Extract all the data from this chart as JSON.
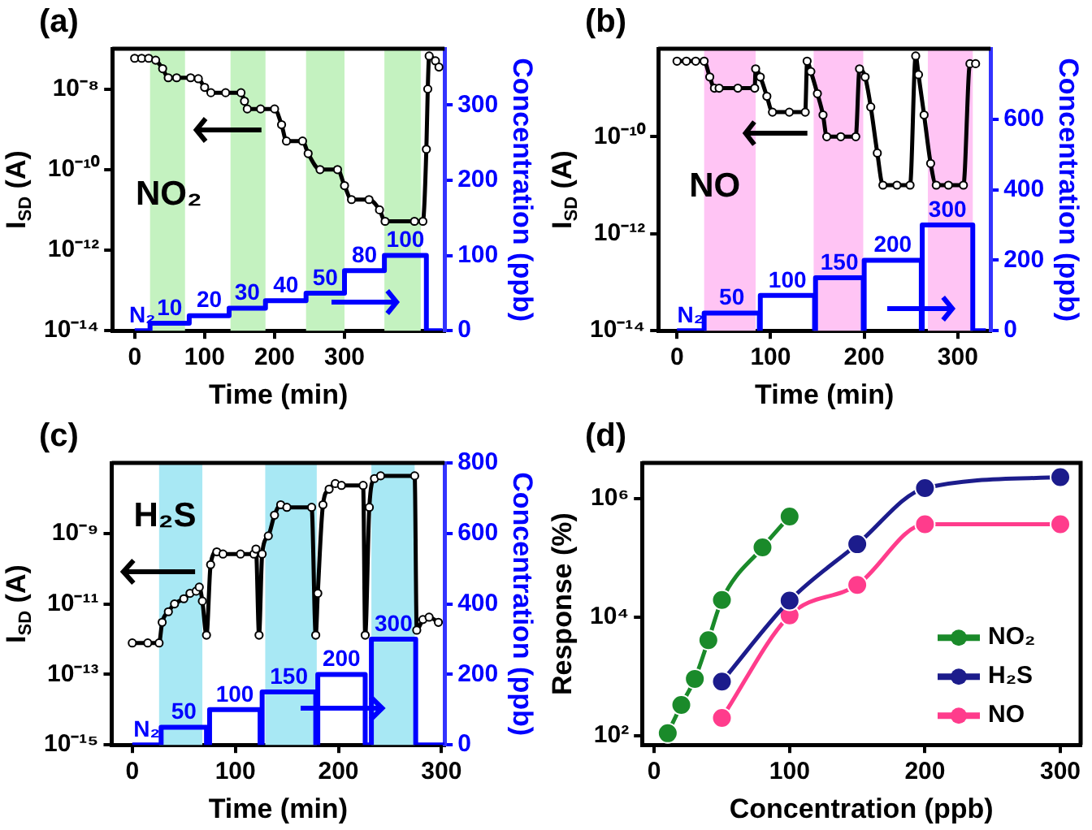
{
  "chart_data": [
    {
      "type": "line",
      "title": "(a)",
      "xlabel": "Time (min)",
      "ylabel": "I$_{SD}$ (A)",
      "y2label": "Concentration (ppb)",
      "log": "y",
      "legend": false,
      "xlim": [
        -32,
        443
      ],
      "xticks": [
        0,
        100,
        200,
        300
      ],
      "ylim": [
        1e-14,
        1e-07
      ],
      "yticks": [
        {
          "value": 1e-14,
          "label": "10⁻¹⁴"
        },
        {
          "value": 1e-12,
          "label": "10⁻¹²"
        },
        {
          "value": 1e-10,
          "label": "10⁻¹⁰"
        },
        {
          "value": 1e-08,
          "label": "10⁻⁸"
        }
      ],
      "y2lim": [
        0,
        375
      ],
      "y2ticks": [
        0,
        100,
        200,
        300
      ],
      "annotations": [
        "NO₂"
      ],
      "bands": [
        {
          "axis": "x",
          "from": 22,
          "to": 72,
          "color": "#c4f2c0"
        },
        {
          "axis": "x",
          "from": 137,
          "to": 187,
          "color": "#c4f2c0"
        },
        {
          "axis": "x",
          "from": 245,
          "to": 300,
          "color": "#c4f2c0"
        },
        {
          "axis": "x",
          "from": 357,
          "to": 409,
          "color": "#c4f2c0"
        }
      ],
      "series": [
        {
          "color": "#000000",
          "marker": "circle",
          "x": [
            0,
            10,
            20,
            30,
            40,
            48,
            60,
            80,
            91,
            100,
            109,
            130,
            152,
            157,
            161,
            180,
            200,
            210,
            217,
            240,
            248,
            265,
            290,
            300,
            310,
            335,
            350,
            358,
            400,
            412,
            417,
            419,
            421,
            430,
            435
          ],
          "values": [
            5.8e-08,
            5.8e-08,
            5.8e-08,
            5.2e-08,
            3.2e-08,
            1.9e-08,
            1.9e-08,
            1.9e-08,
            1.8e-08,
            1.1e-08,
            8.1e-09,
            8.1e-09,
            8.1e-09,
            5e-09,
            3.2e-09,
            3.2e-09,
            3.2e-09,
            1.3e-09,
            5.1e-10,
            5.1e-10,
            2.5e-10,
            1e-10,
            1e-10,
            4e-11,
            1.8e-11,
            1.8e-11,
            1e-11,
            5.2e-12,
            5.2e-12,
            5.2e-12,
            3.2e-10,
            1e-08,
            6.6e-08,
            5e-08,
            3.5e-08
          ]
        },
        {
          "type": "step",
          "axis": "y2",
          "color": "#0000ff",
          "marker": "none",
          "x": [
            0,
            22,
            78,
            135,
            187,
            245,
            300,
            357,
            417,
            440
          ],
          "values": [
            0,
            10,
            20,
            30,
            40,
            50,
            80,
            100,
            0,
            0
          ],
          "value_labels": [
            "N₂",
            "10",
            "20",
            "30",
            "40",
            "50",
            "80",
            "100",
            null,
            null
          ]
        }
      ]
    },
    {
      "type": "line",
      "title": "(b)",
      "xlabel": "Time (min)",
      "ylabel": "I$_{SD}$ (A)",
      "y2label": "Concentration (ppb)",
      "log": "y",
      "legend": false,
      "xlim": [
        -20,
        335
      ],
      "xticks": [
        0,
        100,
        200,
        300
      ],
      "ylim": [
        1e-14,
        6.5e-09
      ],
      "yticks": [
        {
          "value": 1e-14,
          "label": "10⁻¹⁴"
        },
        {
          "value": 1e-12,
          "label": "10⁻¹²"
        },
        {
          "value": 1e-10,
          "label": "10⁻¹⁰"
        }
      ],
      "y2lim": [
        0,
        800
      ],
      "y2ticks": [
        0,
        200,
        400,
        600
      ],
      "annotations": [
        "NO"
      ],
      "bands": [
        {
          "axis": "x",
          "from": 29,
          "to": 84,
          "color": "#ffc4f4"
        },
        {
          "axis": "x",
          "from": 146,
          "to": 199,
          "color": "#ffc4f4"
        },
        {
          "axis": "x",
          "from": 268,
          "to": 316,
          "color": "#ffc4f4"
        }
      ],
      "series": [
        {
          "color": "#000000",
          "marker": "circle",
          "x": [
            0,
            10,
            20,
            29,
            35,
            40,
            45,
            65,
            83,
            84,
            89,
            96,
            102,
            120,
            137,
            139,
            143,
            150,
            156,
            160,
            175,
            191,
            195,
            201,
            207,
            214,
            220,
            235,
            249,
            255,
            258,
            264,
            271,
            277,
            290,
            306,
            313,
            319
          ],
          "values": [
            3.6e-09,
            3.6e-09,
            3.6e-09,
            3.6e-09,
            1.7e-09,
            1e-09,
            1e-09,
            1e-09,
            1e-09,
            2.5e-09,
            1.7e-09,
            6.8e-10,
            3.2e-10,
            3.2e-10,
            3.2e-10,
            3.6e-09,
            2.2e-09,
            7.7e-10,
            2.8e-10,
            1e-10,
            1e-10,
            1e-10,
            2.5e-09,
            1.7e-09,
            4.1e-10,
            4.6e-11,
            1e-11,
            1e-11,
            1e-11,
            4.6e-09,
            1.9e-09,
            2.8e-10,
            2.8e-11,
            1e-11,
            1e-11,
            1e-11,
            3.2e-09,
            3.2e-09
          ]
        },
        {
          "type": "step",
          "axis": "y2",
          "color": "#0000ff",
          "marker": "none",
          "x": [
            0,
            29,
            88,
            89,
            147,
            148,
            199,
            200,
            261,
            262,
            316,
            330
          ],
          "values": [
            0,
            50,
            0,
            100,
            0,
            150,
            0,
            200,
            0,
            300,
            0,
            0
          ],
          "value_labels": [
            "N₂",
            "50",
            null,
            "100",
            null,
            "150",
            null,
            "200",
            null,
            "300",
            null,
            null
          ]
        }
      ]
    },
    {
      "type": "line",
      "title": "(c)",
      "xlabel": "Time (min)",
      "ylabel": "I$_{SD}$ (A)",
      "y2label": "Concentration (ppb)",
      "log": "y",
      "legend": false,
      "xlim": [
        -20,
        303
      ],
      "xticks": [
        0,
        100,
        200,
        300
      ],
      "ylim": [
        1e-15,
        1e-07
      ],
      "yticks": [
        {
          "value": 1e-15,
          "label": "10⁻¹⁵"
        },
        {
          "value": 1e-13,
          "label": "10⁻¹³"
        },
        {
          "value": 1e-11,
          "label": "10⁻¹¹"
        },
        {
          "value": 1e-09,
          "label": "10⁻⁹"
        }
      ],
      "y2lim": [
        0,
        800
      ],
      "y2ticks": [
        0,
        200,
        400,
        600,
        800
      ],
      "annotations": [
        "H₂S"
      ],
      "bands": [
        {
          "axis": "x",
          "from": 26,
          "to": 68,
          "color": "#a8e8f4"
        },
        {
          "axis": "x",
          "from": 129,
          "to": 179,
          "color": "#a8e8f4"
        },
        {
          "axis": "x",
          "from": 232,
          "to": 274,
          "color": "#a8e8f4"
        }
      ],
      "series": [
        {
          "color": "#000000",
          "marker": "circle",
          "x": [
            0,
            15,
            26,
            29,
            35,
            41,
            50,
            56,
            62,
            65,
            68,
            72,
            76,
            82,
            88,
            105,
            118,
            120,
            123,
            126,
            132,
            138,
            144,
            150,
            174,
            178,
            180,
            185,
            191,
            197,
            203,
            224,
            226,
            230,
            235,
            241,
            274,
            276,
            282,
            288,
            297
          ],
          "values": [
            7.8e-13,
            7.8e-13,
            7.8e-13,
            3e-12,
            6e-12,
            1e-11,
            1.4e-11,
            2e-11,
            2.3e-11,
            3e-11,
            1.2e-11,
            1.3e-12,
            1.3e-10,
            3e-10,
            2.6e-10,
            2.6e-10,
            2.6e-10,
            3.6e-10,
            1.3e-12,
            2.6e-10,
            8.5e-10,
            3.3e-09,
            6.5e-09,
            5.5e-09,
            5.5e-09,
            1.3e-12,
            2e-11,
            6.5e-09,
            1.8e-08,
            2.6e-08,
            2.3e-08,
            2.3e-08,
            1.3e-12,
            5.5e-09,
            3.6e-08,
            4.3e-08,
            4.3e-08,
            1.8e-12,
            3.6e-12,
            4.2e-12,
            3e-12
          ]
        },
        {
          "type": "step",
          "axis": "y2",
          "color": "#0000ff",
          "marker": "none",
          "x": [
            0,
            28,
            72,
            75,
            124,
            126,
            178,
            180,
            226,
            232,
            275,
            303
          ],
          "values": [
            0,
            50,
            0,
            100,
            0,
            150,
            0,
            200,
            0,
            300,
            0,
            0
          ],
          "value_labels": [
            "N₂",
            "50",
            null,
            "100",
            null,
            "150",
            null,
            "200",
            null,
            "300",
            null,
            null
          ]
        }
      ]
    },
    {
      "type": "line",
      "title": "(d)",
      "xlabel": "Concentration (ppb)",
      "ylabel": "Response (%)",
      "log": "y",
      "legend": "bottom right",
      "marker": "circle",
      "xlim": [
        -9,
        315
      ],
      "xticks": [
        0,
        100,
        200,
        300
      ],
      "ylim": [
        70,
        4000000
      ],
      "yticks": [
        {
          "value": 100,
          "label": "10²"
        },
        {
          "value": 10000,
          "label": "10⁴"
        },
        {
          "value": 1000000,
          "label": "10⁶"
        }
      ],
      "series": [
        {
          "name": "NO₂",
          "color": "#1a8a2a",
          "x": [
            10,
            20,
            30,
            40,
            50,
            80,
            100
          ],
          "values": [
            110,
            330,
            910,
            4100,
            19500,
            150000,
            500000
          ]
        },
        {
          "name": "H₂S",
          "color": "#1c1c8c",
          "x": [
            50,
            100,
            150,
            200,
            300
          ],
          "values": [
            820,
            19000,
            170000,
            1500000,
            2300000
          ]
        },
        {
          "name": "NO",
          "color": "#ff3c8c",
          "x": [
            50,
            100,
            150,
            200,
            300
          ],
          "values": [
            200,
            10700,
            35000,
            370000,
            370000
          ]
        }
      ]
    }
  ]
}
